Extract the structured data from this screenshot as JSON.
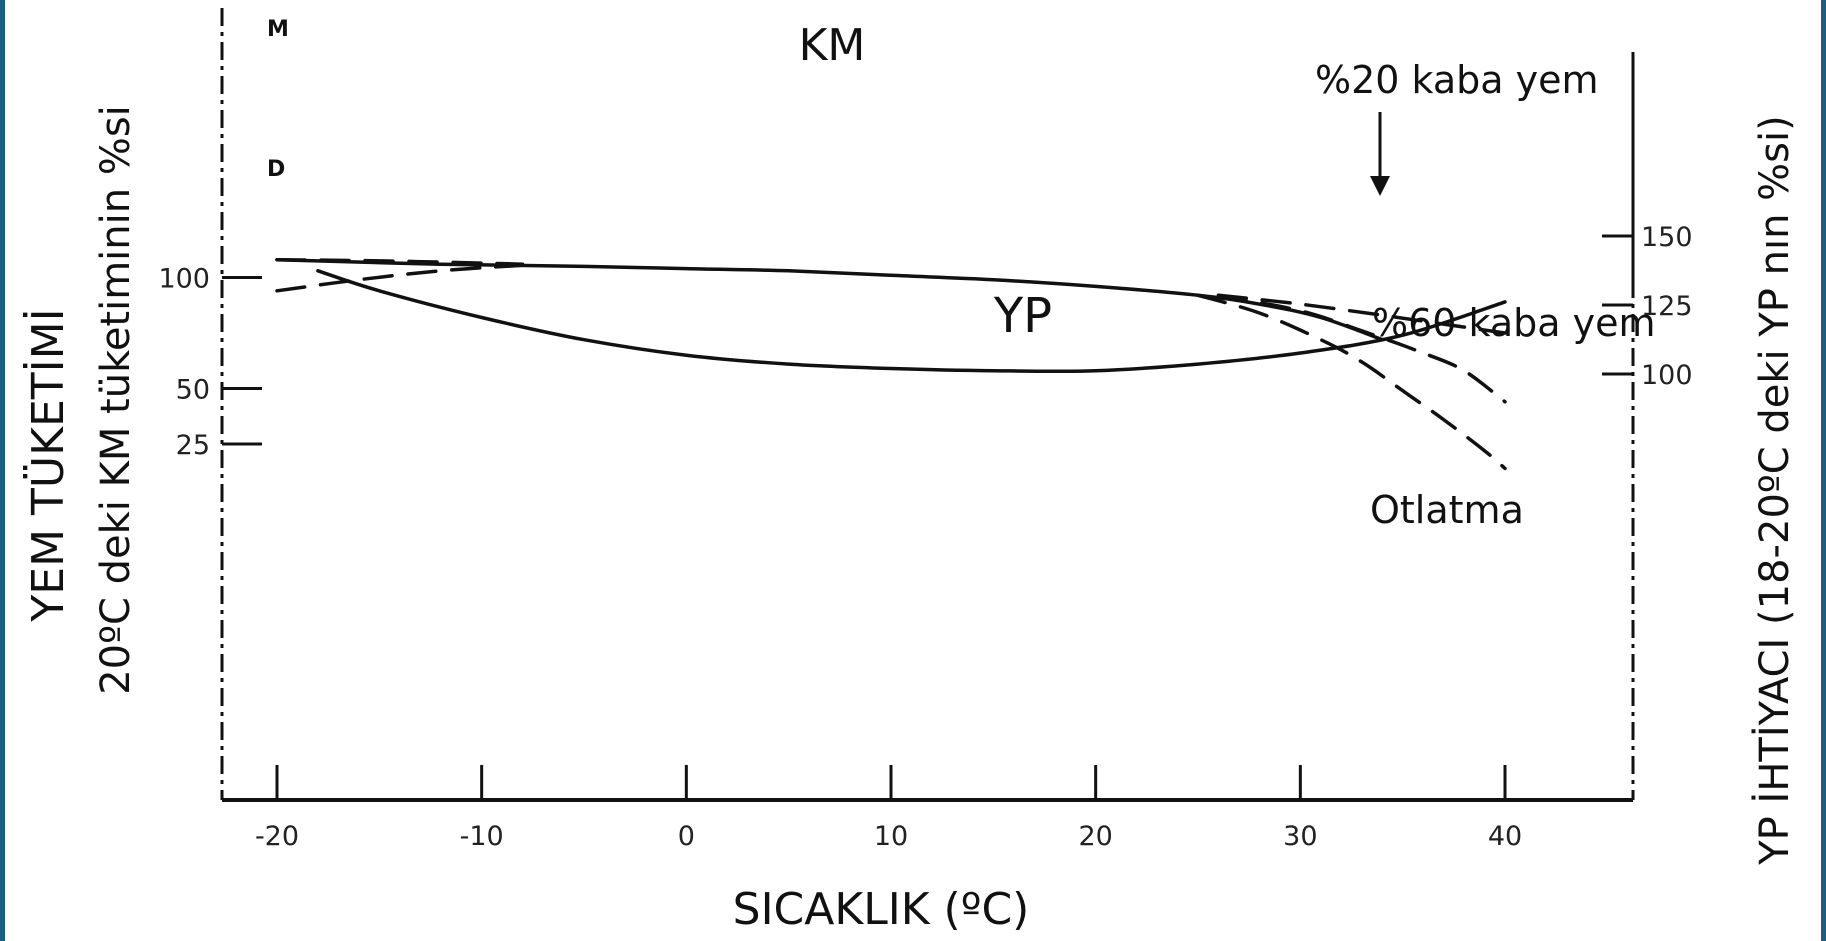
{
  "chart_data": {
    "type": "line",
    "xlabel": "SICAKLIK (ºC)",
    "ylabel_line1": "YEM TÜKETİMİ",
    "ylabel_line2": "20ºC deki KM tüketiminin %si",
    "y2label": "YP İHTİYACI (18-20ºC deki YP nın %si)",
    "xlim": [
      -22,
      46
    ],
    "ylim": [
      0,
      115
    ],
    "y2lim": [
      52,
      152
    ],
    "x_ticks": [
      -20,
      -10,
      0,
      10,
      20,
      30,
      40
    ],
    "x_tick_labels": [
      "-20",
      "-10",
      "0",
      "10",
      "20",
      "30",
      "40"
    ],
    "y_ticks": [
      25,
      50,
      100
    ],
    "y_tick_labels": [
      "25",
      "50",
      "100"
    ],
    "y2_ticks": [
      100,
      125,
      150
    ],
    "y2_tick_labels": [
      "100",
      "125",
      "150"
    ],
    "grid": false,
    "series": [
      {
        "name": "KM",
        "axis": "left",
        "style": "solid",
        "x": [
          -20,
          -12,
          -5,
          0,
          5,
          10,
          15,
          20,
          25,
          28,
          31,
          34
        ],
        "y": [
          108,
          106,
          105,
          104,
          103,
          101,
          99,
          96,
          92,
          88,
          82,
          72
        ]
      },
      {
        "name": "",
        "axis": "left",
        "style": "dashed",
        "x": [
          -20,
          -15,
          -10,
          -8
        ],
        "y": [
          108,
          107.5,
          106.5,
          106
        ]
      },
      {
        "name": "",
        "axis": "left",
        "style": "dashed",
        "x": [
          -20,
          -16,
          -12,
          -8
        ],
        "y": [
          94,
          99,
          103,
          105.5
        ]
      },
      {
        "name": "%20 kaba yem",
        "axis": "left",
        "style": "dashed",
        "x": [
          26,
          30,
          34,
          37,
          40
        ],
        "y": [
          92,
          88,
          83,
          79,
          75
        ]
      },
      {
        "name": "%60 kaba yem",
        "axis": "left",
        "style": "dashed",
        "x": [
          26,
          30,
          33,
          36,
          38,
          40
        ],
        "y": [
          92,
          85,
          76,
          66,
          58,
          44
        ]
      },
      {
        "name": "Otlatma",
        "axis": "left",
        "style": "dashed",
        "x": [
          25,
          28,
          31,
          33,
          35,
          37,
          39,
          40
        ],
        "y": [
          92,
          84,
          72,
          62,
          49,
          36,
          22,
          14
        ]
      },
      {
        "name": "YP",
        "axis": "left",
        "style": "solid",
        "x": [
          -18,
          -15,
          -10,
          -5,
          0,
          5,
          10,
          15,
          20,
          25,
          30,
          35,
          40
        ],
        "y": [
          103,
          94,
          82,
          72,
          65,
          61,
          59,
          58,
          58,
          61,
          66,
          74,
          89
        ]
      }
    ],
    "labels": {
      "km": "KM",
      "yp": "YP",
      "m": "M",
      "d": "D",
      "kaba20": "%20 kaba yem",
      "kaba60": "%60 kaba yem",
      "otlatma": "Otlatma"
    }
  }
}
